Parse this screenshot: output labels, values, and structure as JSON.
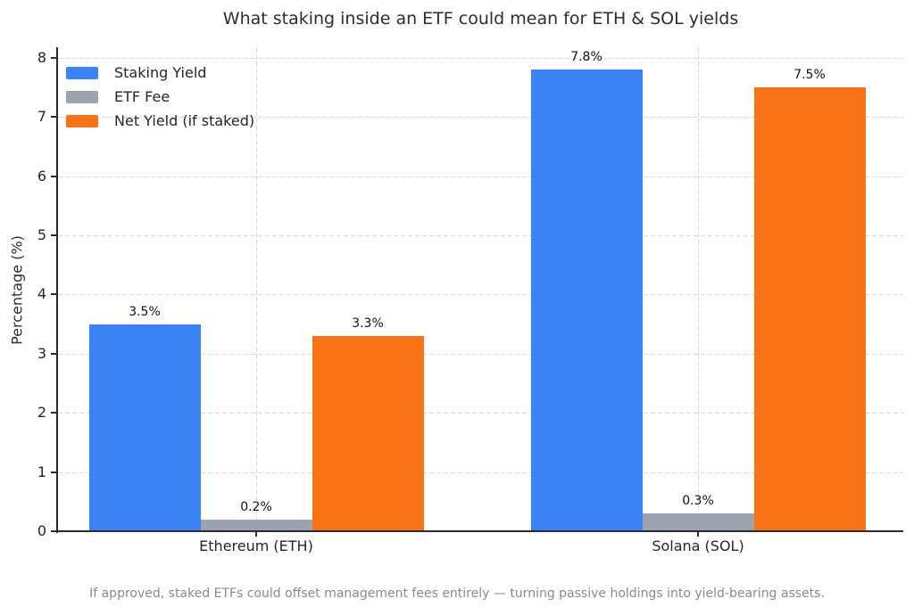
{
  "chart_data": {
    "type": "bar",
    "title": "What staking inside an ETF could mean for ETH & SOL yields",
    "categories": [
      "Ethereum (ETH)",
      "Solana (SOL)"
    ],
    "series": [
      {
        "name": "Staking Yield",
        "color": "#3b82f6",
        "values": [
          3.5,
          7.8
        ],
        "labels": [
          "3.5%",
          "7.8%"
        ]
      },
      {
        "name": "ETF Fee",
        "color": "#9ca3af",
        "values": [
          0.2,
          0.3
        ],
        "labels": [
          "0.2%",
          "0.3%"
        ]
      },
      {
        "name": "Net Yield (if staked)",
        "color": "#f97316",
        "values": [
          3.3,
          7.5
        ],
        "labels": [
          "3.3%",
          "7.5%"
        ]
      }
    ],
    "xlabel": "",
    "ylabel": "Percentage (%)",
    "ylim": [
      0,
      8.18
    ],
    "yticks": [
      0,
      1,
      2,
      3,
      4,
      5,
      6,
      7,
      8
    ],
    "grid": "dashed",
    "legend_position": "upper left"
  },
  "footer": {
    "note": "If approved, staked ETFs could offset management fees entirely — turning passive holdings into yield-bearing assets."
  }
}
